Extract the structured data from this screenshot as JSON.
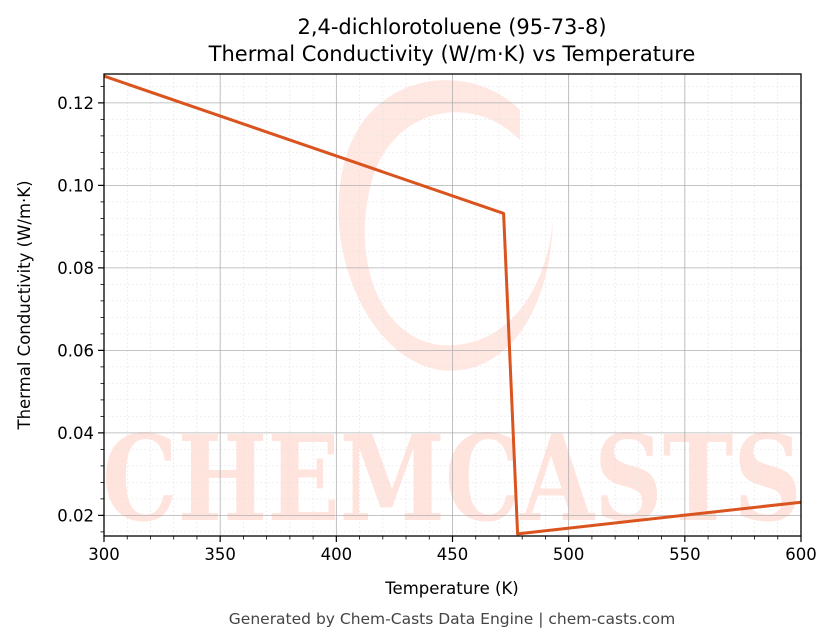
{
  "chart_data": {
    "type": "line",
    "title_line1": "2,4-dichlorotoluene (95-73-8)",
    "title_line2": "Thermal Conductivity (W/m·K) vs Temperature",
    "xlabel": "Temperature (K)",
    "ylabel": "Thermal Conductivity (W/m·K)",
    "xlim": [
      300,
      600
    ],
    "ylim": [
      0.015,
      0.127
    ],
    "xticks": [
      300,
      350,
      400,
      450,
      500,
      550,
      600
    ],
    "yticks": [
      0.02,
      0.04,
      0.06,
      0.08,
      0.1,
      0.12
    ],
    "grid": true,
    "line_color": "#d9541e",
    "series": [
      {
        "x": [
          300,
          472,
          478,
          600
        ],
        "y": [
          0.1265,
          0.0932,
          0.0155,
          0.0232
        ]
      }
    ]
  },
  "watermark": {
    "text": "CHEMCASTS",
    "color": "#ffe3dd"
  },
  "footer": "Generated by Chem-Casts Data Engine | chem-casts.com"
}
